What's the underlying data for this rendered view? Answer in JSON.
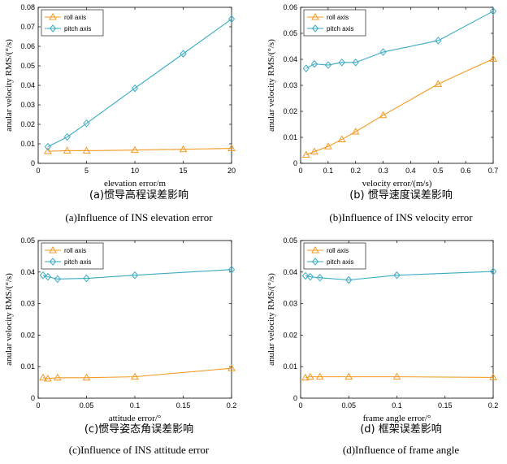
{
  "chart_data": [
    {
      "type": "line",
      "xlabel": "elevation error/m",
      "ylabel": "anular velocity RMS/(°/s)",
      "xlim": [
        0,
        20
      ],
      "ylim": [
        0,
        0.08
      ],
      "xticks": [
        "0",
        "5",
        "10",
        "15",
        "20"
      ],
      "yticks": [
        "0",
        "0.01",
        "0.02",
        "0.03",
        "0.04",
        "0.05",
        "0.06",
        "0.07",
        "0.08"
      ],
      "legend_position": "top-left",
      "grid": false,
      "series": [
        {
          "name": "roll axis",
          "color": "#f59a23",
          "marker": "triangle",
          "x": [
            1,
            3,
            5,
            10,
            15,
            20
          ],
          "y": [
            0.0062,
            0.0065,
            0.0065,
            0.0068,
            0.0072,
            0.0077
          ]
        },
        {
          "name": "pitch axis",
          "color": "#3aabc4",
          "marker": "diamond",
          "x": [
            1,
            3,
            5,
            10,
            15,
            20
          ],
          "y": [
            0.0085,
            0.0135,
            0.0205,
            0.0385,
            0.0562,
            0.074
          ]
        }
      ],
      "caption_cn": "(a)惯导高程误差影响",
      "caption_en": "(a)Influence of INS elevation error"
    },
    {
      "type": "line",
      "xlabel": "velocity error/(m/s)",
      "ylabel": "anular velocity RMS/(°/s)",
      "xlim": [
        0,
        0.7
      ],
      "ylim": [
        0,
        0.06
      ],
      "xticks": [
        "0",
        "0.1",
        "0.2",
        "0.3",
        "0.4",
        "0.5",
        "0.6",
        "0.7"
      ],
      "yticks": [
        "0",
        "0.01",
        "0.02",
        "0.03",
        "0.04",
        "0.05",
        "0.06"
      ],
      "legend_position": "top-left",
      "grid": false,
      "series": [
        {
          "name": "roll axis",
          "color": "#f59a23",
          "marker": "triangle",
          "x": [
            0.02,
            0.05,
            0.1,
            0.15,
            0.2,
            0.3,
            0.5,
            0.7
          ],
          "y": [
            0.0033,
            0.0045,
            0.0065,
            0.0092,
            0.0122,
            0.0185,
            0.0305,
            0.0402
          ]
        },
        {
          "name": "pitch axis",
          "color": "#3aabc4",
          "marker": "diamond",
          "x": [
            0.02,
            0.05,
            0.1,
            0.15,
            0.2,
            0.3,
            0.5,
            0.7
          ],
          "y": [
            0.0365,
            0.0382,
            0.0378,
            0.0388,
            0.0388,
            0.0428,
            0.0472,
            0.0585
          ]
        }
      ],
      "caption_cn": "(b) 惯导速度误差影响",
      "caption_en": "(b)Influence of INS velocity error"
    },
    {
      "type": "line",
      "xlabel": "attitude error/°",
      "ylabel": "anular velocity RMS/(°/s)",
      "xlim": [
        0,
        0.2
      ],
      "ylim": [
        0,
        0.05
      ],
      "xticks": [
        "0",
        "0.05",
        "0.1",
        "0.15",
        "0.2"
      ],
      "yticks": [
        "0",
        "0.01",
        "0.02",
        "0.03",
        "0.04",
        "0.05"
      ],
      "legend_position": "top-left",
      "grid": false,
      "series": [
        {
          "name": "roll axis",
          "color": "#f59a23",
          "marker": "triangle",
          "x": [
            0.005,
            0.01,
            0.02,
            0.05,
            0.1,
            0.2
          ],
          "y": [
            0.0065,
            0.0062,
            0.0065,
            0.0065,
            0.0068,
            0.0095
          ]
        },
        {
          "name": "pitch axis",
          "color": "#3aabc4",
          "marker": "diamond",
          "x": [
            0.005,
            0.01,
            0.02,
            0.05,
            0.1,
            0.2
          ],
          "y": [
            0.039,
            0.0385,
            0.0378,
            0.038,
            0.039,
            0.0408
          ]
        }
      ],
      "caption_cn": "(c)惯导姿态角误差影响",
      "caption_en": "(c)Influence of INS attitude error"
    },
    {
      "type": "line",
      "xlabel": "frame angle error/°",
      "ylabel": "anular velocity RMS/(°/s)",
      "xlim": [
        0,
        0.2
      ],
      "ylim": [
        0,
        0.05
      ],
      "xticks": [
        "0",
        "0.05",
        "0.1",
        "0.15",
        "0.2"
      ],
      "yticks": [
        "0",
        "0.01",
        "0.02",
        "0.03",
        "0.04",
        "0.05"
      ],
      "legend_position": "top-left",
      "grid": false,
      "series": [
        {
          "name": "roll axis",
          "color": "#f59a23",
          "marker": "triangle",
          "x": [
            0.005,
            0.01,
            0.02,
            0.05,
            0.1,
            0.2
          ],
          "y": [
            0.0065,
            0.0068,
            0.0068,
            0.0068,
            0.0068,
            0.0066
          ]
        },
        {
          "name": "pitch axis",
          "color": "#3aabc4",
          "marker": "diamond",
          "x": [
            0.005,
            0.01,
            0.02,
            0.05,
            0.1,
            0.2
          ],
          "y": [
            0.0388,
            0.0385,
            0.0382,
            0.0375,
            0.039,
            0.0402
          ]
        }
      ],
      "caption_cn": "(d) 框架误差影响",
      "caption_en": "(d)Influence of frame angle"
    }
  ]
}
